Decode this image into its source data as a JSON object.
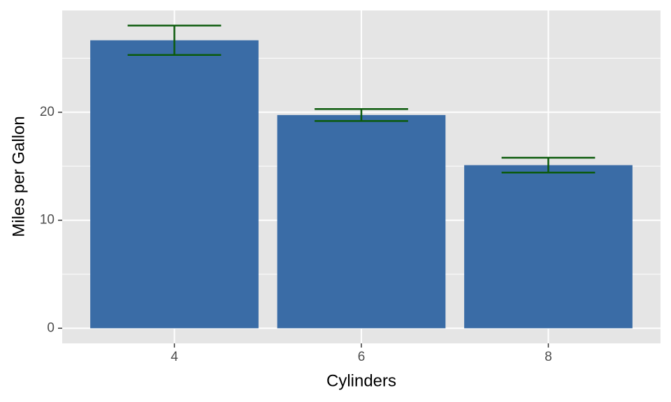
{
  "chart_data": {
    "type": "bar",
    "x_label": "Cylinders",
    "y_label": "Miles per Gallon",
    "categories": [
      "4",
      "6",
      "8"
    ],
    "values": [
      26.66,
      19.74,
      15.1
    ],
    "errors": [
      1.36,
      0.55,
      0.69
    ],
    "color": "#3a6ca6",
    "error_color": "#0b5a0b",
    "ylim": [
      -1.4,
      29.42
    ],
    "yticks": [
      0,
      10,
      20
    ],
    "y_minor_gridlines": [
      5,
      15,
      25
    ],
    "grid": true
  }
}
